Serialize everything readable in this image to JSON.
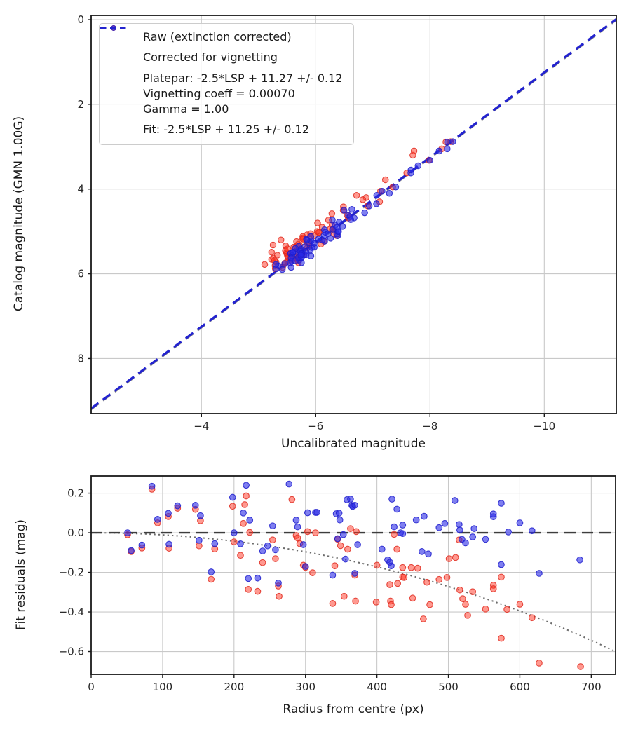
{
  "colors": {
    "raw_fill": "#ff3322",
    "raw_stroke": "#e02b20",
    "vig_fill": "#2a2ae6",
    "vig_stroke": "#1d1dcc",
    "fit_line": "#2323cf",
    "platepar_line": "#8c8c8c",
    "zero_line": "#3d3d3d",
    "vignetting_curve": "#6b6b6b",
    "grid": "#c9c9c9",
    "spine": "#1a1a1a",
    "tick_text": "#262626"
  },
  "legend": {
    "raw": "Raw (extinction corrected)",
    "corrected": "Corrected for vignetting",
    "platepar_line1": "Platepar: -2.5*LSP + 11.27 +/- 0.12",
    "platepar_line2": "Vignetting coeff = 0.00070",
    "platepar_line3": "Gamma = 1.00",
    "fit": "Fit: -2.5*LSP + 11.25 +/- 0.12"
  },
  "chart_data": {
    "type": "multi",
    "model": {
      "slope_term": "-2.5*LSP",
      "fit_intercept": 11.25,
      "fit_uncertainty": 0.12,
      "platepar_intercept": 11.27,
      "platepar_uncertainty": 0.12,
      "vignetting_coeff": 0.0007,
      "gamma": 1.0,
      "top_point_rule": "x = cat - 11.25 - res ; y = cat",
      "bottom_point_rule": "x = radius ; y = res",
      "curve_rule": "res(r) = 10*log10(cos(vignetting_coeff*r))"
    },
    "charts": [
      {
        "type": "scatter",
        "xlabel": "Uncalibrated magnitude",
        "ylabel": "Catalog magnitude (GMN 1.00G)",
        "xlim": [
          -2.07,
          -11.26
        ],
        "ylim": [
          9.3,
          -0.1
        ],
        "xticks": [
          {
            "v": -4,
            "t": "−4"
          },
          {
            "v": -6,
            "t": "−6"
          },
          {
            "v": -8,
            "t": "−8"
          },
          {
            "v": -10,
            "t": "−10"
          }
        ],
        "yticks": [
          {
            "v": 0,
            "t": "0"
          },
          {
            "v": 2,
            "t": "2"
          },
          {
            "v": 4,
            "t": "4"
          },
          {
            "v": 6,
            "t": "6"
          },
          {
            "v": 8,
            "t": "8"
          }
        ],
        "grid": true,
        "legend_position": "upper left",
        "series": [
          "raw",
          "vignetting-corrected",
          "platepar-line",
          "fit-line"
        ]
      },
      {
        "type": "scatter",
        "xlabel": "Radius from centre (px)",
        "ylabel": "Fit residuals (mag)",
        "xlim": [
          0,
          734
        ],
        "ylim": [
          -0.715,
          0.287
        ],
        "xticks": [
          {
            "v": 0,
            "t": "0"
          },
          {
            "v": 100,
            "t": "100"
          },
          {
            "v": 200,
            "t": "200"
          },
          {
            "v": 300,
            "t": "300"
          },
          {
            "v": 400,
            "t": "400"
          },
          {
            "v": 500,
            "t": "500"
          },
          {
            "v": 600,
            "t": "600"
          },
          {
            "v": 700,
            "t": "700"
          }
        ],
        "yticks": [
          {
            "v": 0.2,
            "t": "0.2"
          },
          {
            "v": 0.0,
            "t": "0.0"
          },
          {
            "v": -0.2,
            "t": "−0.2"
          },
          {
            "v": -0.4,
            "t": "−0.4"
          },
          {
            "v": -0.6,
            "t": "−0.6"
          }
        ],
        "grid": true,
        "series": [
          "raw-residuals",
          "vignetting-corrected-residuals",
          "zero-line",
          "vignetting-model-curve"
        ]
      }
    ],
    "stars_fields": [
      "radius_px",
      "catalog_mag",
      "blue_residual",
      "red_residual"
    ],
    "stars": [
      [
        51,
        4.95,
        0.0,
        -0.01
      ],
      [
        56,
        5.42,
        -0.09,
        -0.095
      ],
      [
        71,
        5.88,
        -0.062,
        -0.077
      ],
      [
        85,
        5.1,
        0.235,
        0.22
      ],
      [
        93,
        3.32,
        0.068,
        0.05
      ],
      [
        108,
        5.55,
        0.098,
        0.082
      ],
      [
        109,
        4.62,
        -0.058,
        -0.078
      ],
      [
        121,
        5.23,
        0.136,
        0.124
      ],
      [
        146,
        5.68,
        0.139,
        0.118
      ],
      [
        151,
        4.05,
        -0.038,
        -0.066
      ],
      [
        153,
        4.4,
        0.086,
        0.061
      ],
      [
        168,
        5.35,
        -0.198,
        -0.235
      ],
      [
        173,
        2.89,
        -0.055,
        -0.082
      ],
      [
        198,
        5.06,
        0.179,
        0.134
      ],
      [
        200,
        5.5,
        0.0,
        -0.046
      ],
      [
        209,
        4.85,
        -0.056,
        -0.114
      ],
      [
        213,
        3.95,
        0.1,
        0.047
      ],
      [
        215,
        5.3,
        null,
        0.142
      ],
      [
        217,
        5.74,
        0.24,
        0.186
      ],
      [
        220,
        5.18,
        -0.231,
        -0.286
      ],
      [
        222,
        5.62,
        0.064,
        0.002
      ],
      [
        233,
        4.73,
        -0.229,
        -0.296
      ],
      [
        240,
        5.81,
        -0.092,
        -0.151
      ],
      [
        247,
        5.46,
        -0.066,
        null
      ],
      [
        254,
        3.62,
        0.035,
        -0.036
      ],
      [
        258,
        5.27,
        -0.086,
        -0.131
      ],
      [
        262,
        4.5,
        -0.254,
        -0.269
      ],
      [
        263,
        5.15,
        null,
        -0.321
      ],
      [
        277,
        5.58,
        0.246,
        null
      ],
      [
        281,
        4.3,
        null,
        0.168
      ],
      [
        287,
        5.38,
        0.064,
        -0.014
      ],
      [
        289,
        5.7,
        0.03,
        -0.026
      ],
      [
        292,
        4.94,
        null,
        -0.055
      ],
      [
        297,
        5.02,
        -0.06,
        -0.164
      ],
      [
        300,
        5.52,
        -0.17,
        -0.175
      ],
      [
        303,
        3.05,
        0.101,
        0.006
      ],
      [
        310,
        5.33,
        null,
        -0.202
      ],
      [
        314,
        4.68,
        0.103,
        0.0
      ],
      [
        316,
        5.6,
        0.103,
        null
      ],
      [
        338,
        5.12,
        -0.214,
        -0.357
      ],
      [
        341,
        4.2,
        null,
        -0.167
      ],
      [
        343,
        5.44,
        0.096,
        null
      ],
      [
        345,
        5.76,
        -0.03,
        -0.033
      ],
      [
        347,
        4.88,
        0.099,
        null
      ],
      [
        348,
        5.2,
        0.065,
        null
      ],
      [
        349,
        5.64,
        null,
        -0.065
      ],
      [
        353,
        3.45,
        -0.009,
        null
      ],
      [
        354,
        5.08,
        null,
        -0.321
      ],
      [
        356,
        5.48,
        -0.133,
        null
      ],
      [
        358,
        4.56,
        0.167,
        null
      ],
      [
        359,
        5.29,
        null,
        -0.083
      ],
      [
        363,
        5.85,
        0.17,
        0.021
      ],
      [
        365,
        5.0,
        0.138,
        null
      ],
      [
        366,
        5.55,
        0.133,
        null
      ],
      [
        369,
        4.1,
        0.139,
        null
      ],
      [
        369,
        5.4,
        -0.205,
        -0.214
      ],
      [
        371,
        5.66,
        null,
        0.006
      ],
      [
        370,
        5.24,
        null,
        -0.345
      ],
      [
        373,
        4.78,
        -0.06,
        null
      ],
      [
        399,
        3.2,
        null,
        -0.35
      ],
      [
        400,
        5.58,
        null,
        -0.164
      ],
      [
        407,
        5.36,
        -0.083,
        null
      ],
      [
        415,
        4.96,
        -0.137,
        null
      ],
      [
        418,
        5.5,
        -0.149,
        -0.262
      ],
      [
        419,
        4.42,
        null,
        -0.345
      ],
      [
        420,
        5.78,
        -0.167,
        -0.363
      ],
      [
        421,
        5.16,
        0.17,
        null
      ],
      [
        424,
        2.88,
        0.03,
        -0.008
      ],
      [
        428,
        5.62,
        0.119,
        -0.083
      ],
      [
        429,
        5.3,
        null,
        -0.256
      ],
      [
        433,
        4.65,
        0.0,
        null
      ],
      [
        436,
        5.53,
        0.039,
        -0.224
      ],
      [
        436,
        5.1,
        -0.004,
        -0.176
      ],
      [
        438,
        5.72,
        null,
        -0.226
      ],
      [
        448,
        4.25,
        null,
        -0.176
      ],
      [
        450,
        5.45,
        null,
        -0.33
      ],
      [
        455,
        5.9,
        0.065,
        null
      ],
      [
        457,
        5.02,
        null,
        -0.179
      ],
      [
        463,
        5.57,
        -0.095,
        null
      ],
      [
        465,
        5.34,
        null,
        -0.435
      ],
      [
        466,
        4.72,
        0.083,
        null
      ],
      [
        470,
        3.78,
        null,
        -0.25
      ],
      [
        472,
        5.22,
        -0.107,
        null
      ],
      [
        474,
        5.66,
        null,
        -0.363
      ],
      [
        487,
        4.9,
        0.026,
        -0.236
      ],
      [
        495,
        5.47,
        0.047,
        null
      ],
      [
        498,
        5.12,
        null,
        -0.226
      ],
      [
        501,
        5.6,
        null,
        -0.131
      ],
      [
        509,
        4.35,
        0.163,
        null
      ],
      [
        510,
        5.26,
        null,
        -0.125
      ],
      [
        515,
        5.74,
        0.042,
        -0.036
      ],
      [
        516,
        5.05,
        0.014,
        -0.289
      ],
      [
        519,
        3.55,
        -0.033,
        null
      ],
      [
        520,
        5.41,
        null,
        -0.333
      ],
      [
        524,
        5.63,
        -0.051,
        -0.361
      ],
      [
        527,
        4.8,
        null,
        -0.417
      ],
      [
        534,
        5.18,
        -0.021,
        -0.298
      ],
      [
        536,
        5.52,
        0.021,
        null
      ],
      [
        552,
        4.15,
        -0.033,
        -0.385
      ],
      [
        563,
        5.37,
        0.095,
        -0.265
      ],
      [
        563,
        5.69,
        0.081,
        -0.283
      ],
      [
        574,
        5.0,
        0.149,
        -0.224
      ],
      [
        574,
        5.49,
        -0.161,
        -0.533
      ],
      [
        582,
        4.58,
        null,
        -0.387
      ],
      [
        584,
        5.28,
        0.004,
        null
      ],
      [
        600,
        5.56,
        0.05,
        -0.361
      ],
      [
        617,
        3.1,
        0.01,
        -0.429
      ],
      [
        627,
        5.2,
        -0.205,
        -0.658
      ],
      [
        684,
        4.48,
        -0.137,
        null
      ],
      [
        685,
        5.32,
        null,
        -0.676
      ]
    ]
  }
}
